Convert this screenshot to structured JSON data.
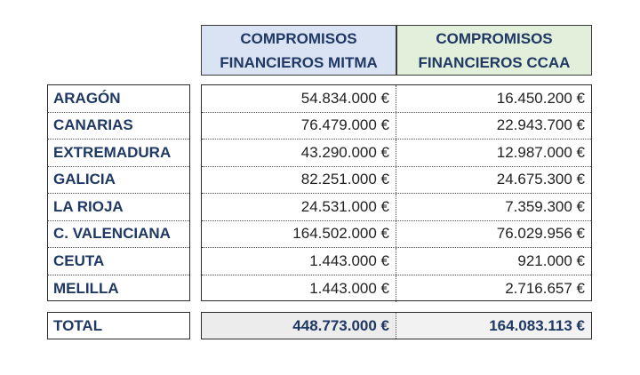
{
  "header": {
    "mitma": {
      "line1": "COMPROMISOS",
      "line2": "FINANCIEROS MITMA"
    },
    "ccaa": {
      "line1": "COMPROMISOS",
      "line2": "FINANCIEROS CCAA"
    }
  },
  "rows": [
    {
      "name": "ARAGÓN",
      "mitma": "54.834.000 €",
      "ccaa": "16.450.200 €"
    },
    {
      "name": "CANARIAS",
      "mitma": "76.479.000 €",
      "ccaa": "22.943.700 €"
    },
    {
      "name": "EXTREMADURA",
      "mitma": "43.290.000 €",
      "ccaa": "12.987.000 €"
    },
    {
      "name": "GALICIA",
      "mitma": "82.251.000 €",
      "ccaa": "24.675.300 €"
    },
    {
      "name": "LA RIOJA",
      "mitma": "24.531.000 €",
      "ccaa": "7.359.300 €"
    },
    {
      "name": "C. VALENCIANA",
      "mitma": "164.502.000 €",
      "ccaa": "76.029.956 €"
    },
    {
      "name": "CEUTA",
      "mitma": "1.443.000 €",
      "ccaa": "921.000 €"
    },
    {
      "name": "MELILLA",
      "mitma": "1.443.000 €",
      "ccaa": "2.716.657 €"
    }
  ],
  "total": {
    "label": "TOTAL",
    "mitma": "448.773.000 €",
    "ccaa": "164.083.113 €"
  },
  "colors": {
    "header_mitma_bg": "#dae3f3",
    "header_ccaa_bg": "#e2efda",
    "label_text": "#1f3864",
    "total_bg": "#ececec"
  }
}
